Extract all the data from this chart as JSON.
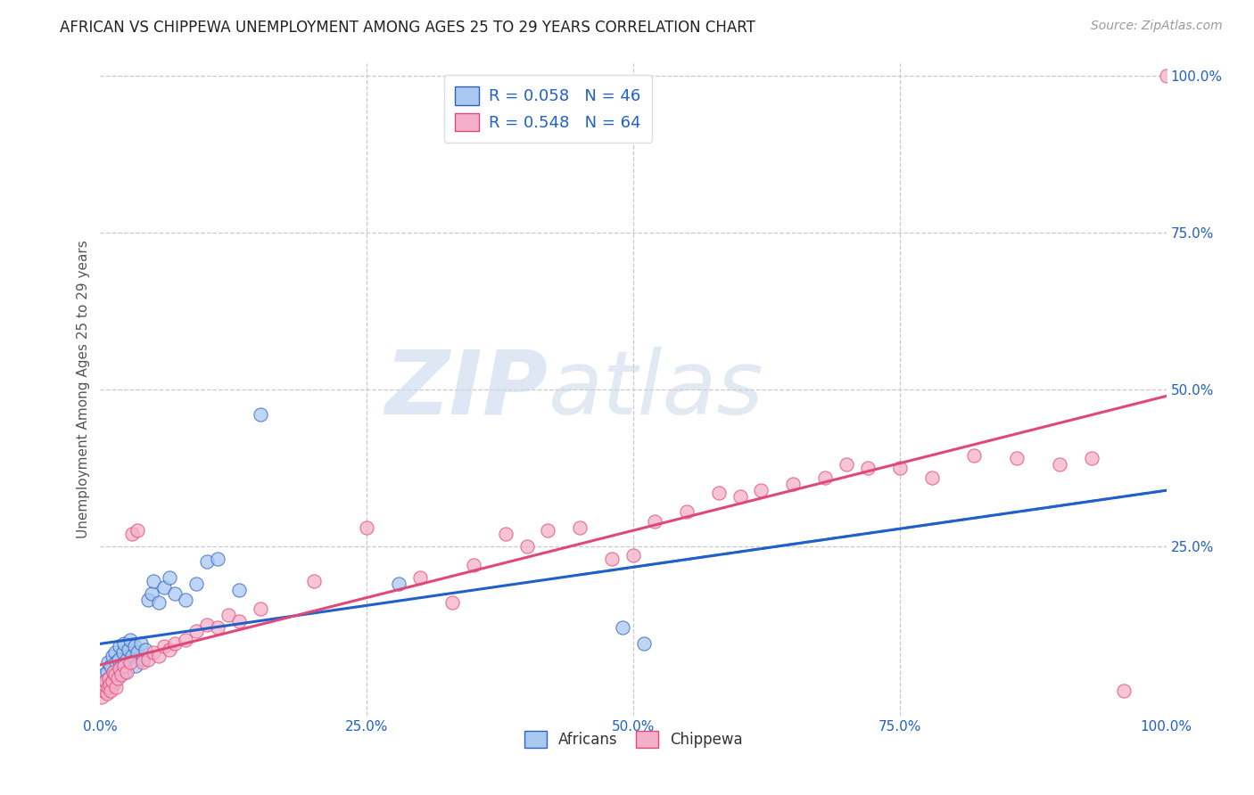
{
  "title": "AFRICAN VS CHIPPEWA UNEMPLOYMENT AMONG AGES 25 TO 29 YEARS CORRELATION CHART",
  "source": "Source: ZipAtlas.com",
  "ylabel": "Unemployment Among Ages 25 to 29 years",
  "xlim": [
    0,
    1.0
  ],
  "ylim": [
    -0.02,
    1.02
  ],
  "xtick_labels": [
    "0.0%",
    "25.0%",
    "50.0%",
    "75.0%",
    "100.0%"
  ],
  "xtick_vals": [
    0.0,
    0.25,
    0.5,
    0.75,
    1.0
  ],
  "right_ytick_labels": [
    "100.0%",
    "75.0%",
    "50.0%",
    "25.0%"
  ],
  "right_ytick_vals": [
    1.0,
    0.75,
    0.5,
    0.25
  ],
  "africans_color": "#a8c8f0",
  "chippewa_color": "#f4b0c8",
  "africans_edge_color": "#3060c0",
  "chippewa_edge_color": "#e04878",
  "africans_line_color": "#2060c8",
  "chippewa_line_color": "#e04878",
  "africans_R": 0.058,
  "africans_N": 46,
  "chippewa_R": 0.548,
  "chippewa_N": 64,
  "legend_text_color": "#2060c8",
  "watermark_zip": "ZIP",
  "watermark_atlas": "atlas",
  "background_color": "#ffffff",
  "grid_color": "#c8c8c8",
  "africans_x": [
    0.002,
    0.003,
    0.004,
    0.005,
    0.006,
    0.007,
    0.008,
    0.01,
    0.011,
    0.012,
    0.013,
    0.014,
    0.015,
    0.016,
    0.017,
    0.018,
    0.02,
    0.021,
    0.022,
    0.023,
    0.025,
    0.026,
    0.028,
    0.03,
    0.032,
    0.033,
    0.035,
    0.038,
    0.04,
    0.042,
    0.045,
    0.048,
    0.05,
    0.055,
    0.06,
    0.065,
    0.07,
    0.08,
    0.09,
    0.1,
    0.11,
    0.13,
    0.15,
    0.28,
    0.49,
    0.51
  ],
  "africans_y": [
    0.03,
    0.045,
    0.02,
    0.035,
    0.05,
    0.065,
    0.04,
    0.06,
    0.075,
    0.03,
    0.05,
    0.08,
    0.065,
    0.045,
    0.07,
    0.09,
    0.06,
    0.08,
    0.095,
    0.05,
    0.07,
    0.085,
    0.1,
    0.075,
    0.09,
    0.06,
    0.08,
    0.095,
    0.07,
    0.085,
    0.165,
    0.175,
    0.195,
    0.16,
    0.185,
    0.2,
    0.175,
    0.165,
    0.19,
    0.225,
    0.23,
    0.18,
    0.46,
    0.19,
    0.12,
    0.095
  ],
  "chippewa_x": [
    0.001,
    0.002,
    0.003,
    0.004,
    0.005,
    0.006,
    0.007,
    0.008,
    0.009,
    0.01,
    0.011,
    0.012,
    0.014,
    0.015,
    0.016,
    0.018,
    0.02,
    0.022,
    0.025,
    0.028,
    0.03,
    0.035,
    0.04,
    0.045,
    0.05,
    0.055,
    0.06,
    0.065,
    0.07,
    0.08,
    0.09,
    0.1,
    0.11,
    0.12,
    0.13,
    0.15,
    0.2,
    0.25,
    0.3,
    0.33,
    0.35,
    0.38,
    0.4,
    0.42,
    0.45,
    0.48,
    0.5,
    0.52,
    0.55,
    0.58,
    0.6,
    0.62,
    0.65,
    0.68,
    0.7,
    0.72,
    0.75,
    0.78,
    0.82,
    0.86,
    0.9,
    0.93,
    0.96,
    1.0
  ],
  "chippewa_y": [
    0.01,
    0.025,
    0.02,
    0.03,
    0.035,
    0.015,
    0.025,
    0.04,
    0.03,
    0.02,
    0.035,
    0.05,
    0.045,
    0.025,
    0.04,
    0.055,
    0.045,
    0.06,
    0.05,
    0.065,
    0.27,
    0.275,
    0.065,
    0.07,
    0.08,
    0.075,
    0.09,
    0.085,
    0.095,
    0.1,
    0.115,
    0.125,
    0.12,
    0.14,
    0.13,
    0.15,
    0.195,
    0.28,
    0.2,
    0.16,
    0.22,
    0.27,
    0.25,
    0.275,
    0.28,
    0.23,
    0.235,
    0.29,
    0.305,
    0.335,
    0.33,
    0.34,
    0.35,
    0.36,
    0.38,
    0.375,
    0.375,
    0.36,
    0.395,
    0.39,
    0.38,
    0.39,
    0.02,
    1.0
  ]
}
